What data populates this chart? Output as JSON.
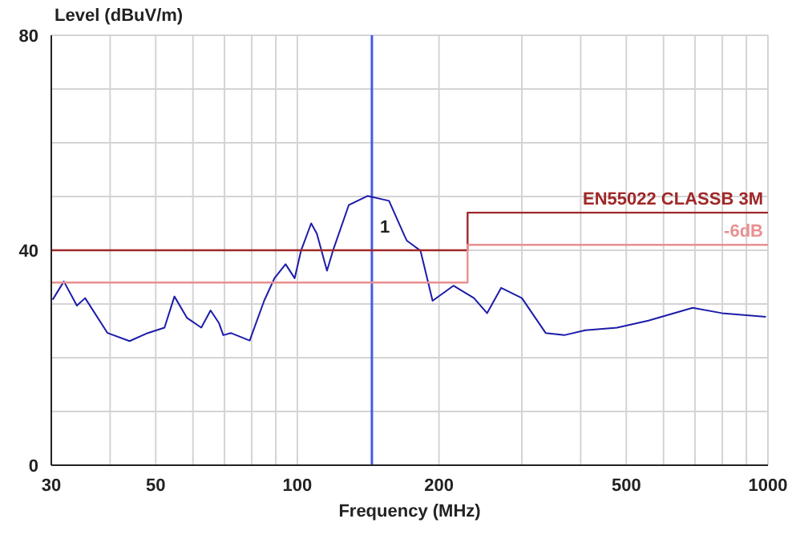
{
  "chart_data": {
    "type": "line",
    "ylabel": "Level (dBuV/m)",
    "xlabel": "Frequency (MHz)",
    "log": "x",
    "xlim": [
      30,
      1000
    ],
    "xticks": [
      30,
      {
        "value": 40,
        "label": null
      },
      50,
      {
        "value": 60,
        "label": null
      },
      {
        "value": 70,
        "label": null
      },
      {
        "value": 80,
        "label": null
      },
      {
        "value": 90,
        "label": null
      },
      100,
      200,
      {
        "value": 300,
        "label": null
      },
      {
        "value": 400,
        "label": null
      },
      500,
      {
        "value": 600,
        "label": null
      },
      {
        "value": 700,
        "label": null
      },
      {
        "value": 800,
        "label": null
      },
      {
        "value": 900,
        "label": null
      },
      1000
    ],
    "ylim": [
      0,
      80
    ],
    "yticks": [
      0,
      {
        "value": 10,
        "label": null
      },
      {
        "value": 20,
        "label": null
      },
      {
        "value": 30,
        "label": null
      },
      40,
      {
        "value": 50,
        "label": null
      },
      {
        "value": 60,
        "label": null
      },
      {
        "value": 70,
        "label": null
      },
      80
    ],
    "grid": true,
    "marker": "none",
    "line_style": "solid",
    "series": [
      {
        "color": "#1c1caa",
        "x": [
          30.2,
          31.9,
          34.0,
          35.4,
          39.5,
          44,
          48.1,
          52.2,
          54.8,
          58.3,
          62.5,
          65.4,
          68.1,
          69.6,
          72.2,
          79.2,
          85.0,
          89.4,
          94.4,
          98.7,
          101.8,
          107,
          110,
          115.6,
          119,
          128.6,
          140.9,
          156.6,
          168.9,
          170.8,
          182.7,
          193.8,
          214.6,
          237.3,
          253,
          271,
          300,
          337,
          369,
          409,
          478,
          557,
          692,
          798,
          990
        ],
        "values": [
          30.8,
          34.2,
          29.7,
          31.1,
          24.6,
          23.1,
          24.6,
          25.6,
          31.4,
          27.4,
          25.6,
          28.8,
          26.5,
          24.2,
          24.6,
          23.2,
          30.6,
          34.8,
          37.4,
          34.8,
          39.9,
          45,
          43.1,
          36.2,
          39.9,
          48.4,
          50.1,
          49.2,
          42.7,
          41.8,
          39.9,
          30.6,
          33.4,
          31.1,
          28.3,
          33.0,
          31.1,
          24.6,
          24.2,
          25.1,
          25.6,
          26.9,
          29.3,
          28.3,
          27.6
        ]
      },
      {
        "name": "EN55022 CLASSB 3M",
        "color": "#a02828",
        "x": [
          30,
          230,
          230,
          1000
        ],
        "values": [
          40,
          40,
          47,
          47
        ]
      },
      {
        "name": "-6dB",
        "color": "#e89090",
        "x": [
          30,
          230,
          230,
          1000
        ],
        "values": [
          34,
          34,
          41,
          41
        ]
      }
    ],
    "ref_lines": [
      {
        "axis": "x",
        "value": 144,
        "color": "#4a5ae0"
      }
    ],
    "annotations": [
      {
        "text": "1",
        "x": 144,
        "y": 48
      }
    ]
  }
}
